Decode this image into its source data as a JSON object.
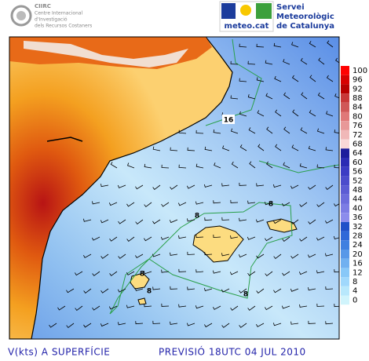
{
  "header": {
    "left_logo": {
      "name": "CIIRC",
      "lines": [
        "Centre Internacional",
        "d'Investigació",
        "dels Recursos Costaners"
      ]
    },
    "right_logo": {
      "site": "meteo.cat",
      "lines": [
        "Servei",
        "Meteorològic",
        "de Catalunya"
      ]
    }
  },
  "map": {
    "contour_labels": [
      "16",
      "8",
      "8",
      "8",
      "8",
      "8"
    ]
  },
  "colorbar": {
    "ticks": [
      100,
      96,
      92,
      88,
      84,
      80,
      76,
      72,
      68,
      64,
      60,
      56,
      52,
      48,
      44,
      40,
      36,
      32,
      28,
      24,
      20,
      16,
      12,
      8,
      4,
      0
    ],
    "colors": [
      "#ff0000",
      "#d80000",
      "#b80000",
      "#c83838",
      "#d05858",
      "#e07878",
      "#e89898",
      "#f0b8b8",
      "#f8d8d8",
      "#1c1c9c",
      "#2c2cb4",
      "#3c3cc4",
      "#4c4ccc",
      "#5c5cd4",
      "#6c6cdc",
      "#7c7ce4",
      "#8c8cec",
      "#2050c8",
      "#3068d8",
      "#4080e0",
      "#5898e8",
      "#70b0f0",
      "#88c8f8",
      "#a0d8fc",
      "#b8e8fc",
      "#d0f4fc"
    ]
  },
  "footer": {
    "left": "V(kts) A SUPERFÍCIE",
    "right": "PREVISIÓ 18UTC 04 JUL 2010"
  }
}
